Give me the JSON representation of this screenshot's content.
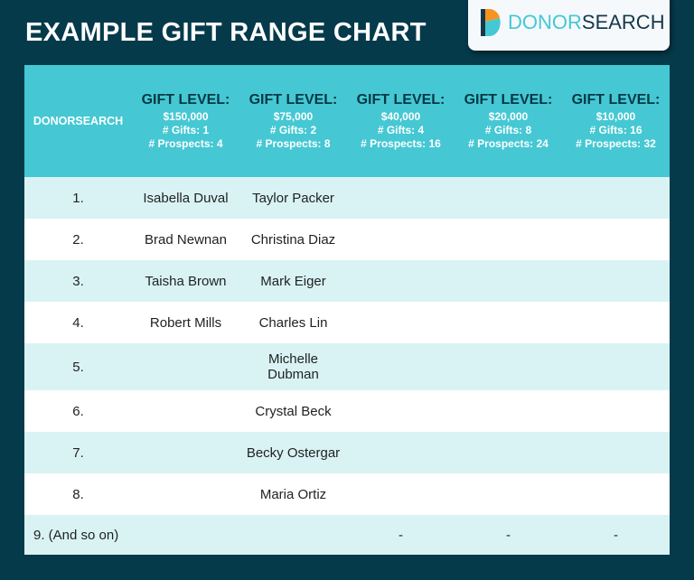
{
  "title": "EXAMPLE GIFT RANGE CHART",
  "logo": {
    "part1": "DONOR",
    "part2": "SEARCH",
    "colors": {
      "orange": "#f7931e",
      "teal": "#45c8d3",
      "navy": "#16384a"
    }
  },
  "table": {
    "corner_header": "DONORSEARCH",
    "columns": [
      {
        "label": "GIFT LEVEL:",
        "amount": "$150,000",
        "gifts": "# Gifts: 1",
        "prospects": "# Prospects: 4"
      },
      {
        "label": "GIFT LEVEL:",
        "amount": "$75,000",
        "gifts": "# Gifts: 2",
        "prospects": "# Prospects: 8"
      },
      {
        "label": "GIFT LEVEL:",
        "amount": "$40,000",
        "gifts": "# Gifts: 4",
        "prospects": "# Prospects: 16"
      },
      {
        "label": "GIFT LEVEL:",
        "amount": "$20,000",
        "gifts": "# Gifts: 8",
        "prospects": "# Prospects: 24"
      },
      {
        "label": "GIFT LEVEL:",
        "amount": "$10,000",
        "gifts": "# Gifts: 16",
        "prospects": "# Prospects: 32"
      }
    ],
    "rows": [
      {
        "num": "1.",
        "cells": [
          "Isabella Duval",
          "Taylor Packer",
          "",
          "",
          ""
        ]
      },
      {
        "num": "2.",
        "cells": [
          "Brad Newnan",
          "Christina Diaz",
          "",
          "",
          ""
        ]
      },
      {
        "num": "3.",
        "cells": [
          "Taisha Brown",
          "Mark Eiger",
          "",
          "",
          ""
        ]
      },
      {
        "num": "4.",
        "cells": [
          "Robert Mills",
          "Charles Lin",
          "",
          "",
          ""
        ]
      },
      {
        "num": "5.",
        "cells": [
          "",
          "Michelle Dubman",
          "",
          "",
          ""
        ]
      },
      {
        "num": "6.",
        "cells": [
          "",
          "Crystal Beck",
          "",
          "",
          ""
        ]
      },
      {
        "num": "7.",
        "cells": [
          "",
          "Becky Ostergar",
          "",
          "",
          ""
        ]
      },
      {
        "num": "8.",
        "cells": [
          "",
          "Maria Ortiz",
          "",
          "",
          ""
        ]
      },
      {
        "num": "9. (And so on)",
        "cells": [
          "",
          "",
          "-",
          "-",
          "-"
        ]
      }
    ]
  }
}
